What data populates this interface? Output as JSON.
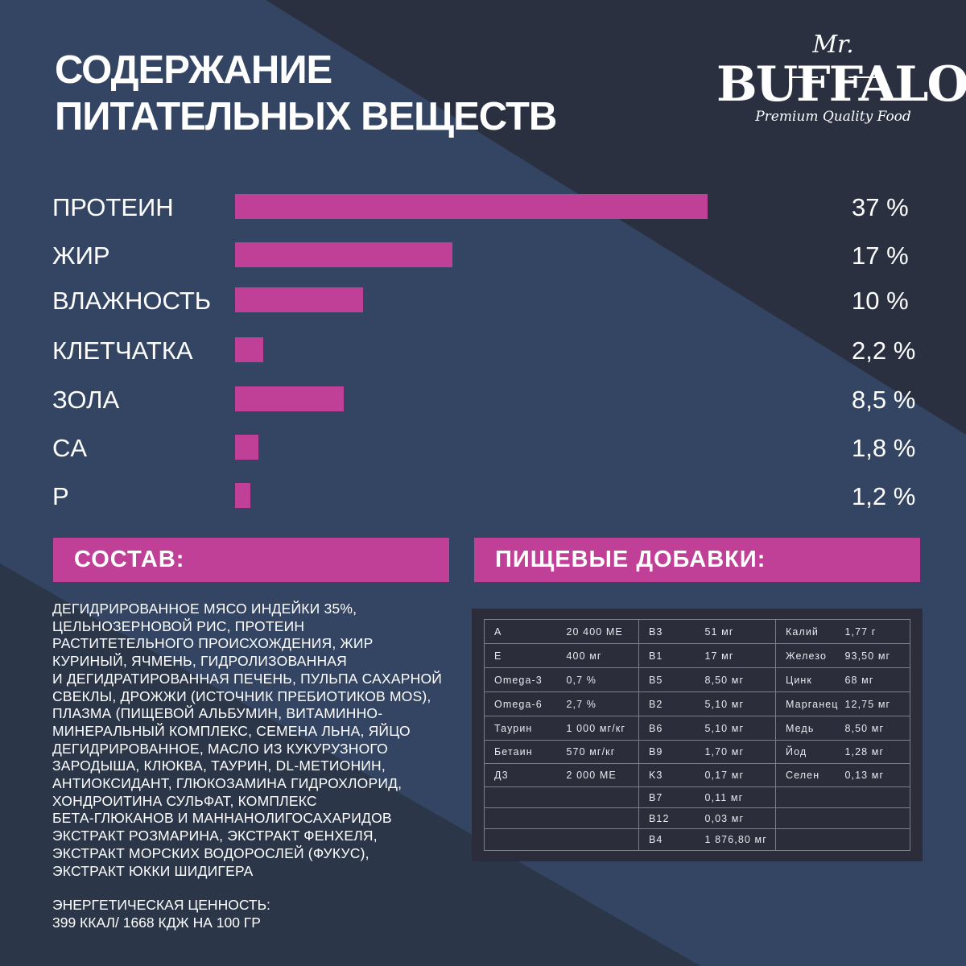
{
  "title": {
    "line1": "СОДЕРЖАНИЕ",
    "line2": "ПИТАТЕЛЬНЫХ ВЕЩЕСТВ"
  },
  "logo": {
    "top": "Mr.",
    "main": "BUFFALO",
    "tagline": "Premium Quality Food"
  },
  "colors": {
    "background": "#2a3347",
    "accent": "#bf4096",
    "text": "#ffffff",
    "table_panel": "#2b2e3a"
  },
  "chart_data": {
    "type": "bar",
    "orientation": "horizontal",
    "categories": [
      "ПРОТЕИН",
      "ЖИР",
      "ВЛАЖНОСТЬ",
      "КЛЕТЧАТКА",
      "ЗОЛА",
      "CA",
      "P"
    ],
    "values": [
      37,
      17,
      10,
      2.2,
      8.5,
      1.8,
      1.2
    ],
    "value_labels": [
      "37 %",
      "17 %",
      "10 %",
      "2,2 %",
      "8,5 %",
      "1,8 %",
      "1,2 %"
    ],
    "grid": false
  },
  "composition": {
    "heading": "СОСТАВ:",
    "lines": [
      "ДЕГИДРИРОВАННОЕ МЯСО ИНДЕЙКИ 35%,",
      "ЦЕЛЬНОЗЕРНОВОЙ РИС, ПРОТЕИН",
      "РАСТИТЕТЕЛЬНОГО ПРОИСХОЖДЕНИЯ, ЖИР",
      "КУРИНЫЙ, ЯЧМЕНЬ, ГИДРОЛИЗОВАННАЯ",
      "И ДЕГИДРАТИРОВАННАЯ ПЕЧЕНЬ, ПУЛЬПА САХАРНОЙ",
      "СВЕКЛЫ, ДРОЖЖИ (ИСТОЧНИК ПРЕБИОТИКОВ MOS),",
      "ПЛАЗМА (ПИЩЕВОЙ АЛЬБУМИН, ВИТАМИННО-",
      "МИНЕРАЛЬНЫЙ КОМПЛЕКС, СЕМЕНА ЛЬНА, ЯЙЦО",
      "ДЕГИДРИРОВАННОЕ, МАСЛО ИЗ КУКУРУЗНОГО",
      "ЗАРОДЫША, КЛЮКВА, ТАУРИН, DL-МЕТИОНИН,",
      "АНТИОКСИДАНТ, ГЛЮКОЗАМИНА ГИДРОХЛОРИД,",
      "ХОНДРОИТИНА СУЛЬФАТ, КОМПЛЕКС",
      "БЕТА-ГЛЮКАНОВ И МАННАНОЛИГОСАХАРИДОВ",
      "ЭКСТРАКТ РОЗМАРИНА, ЭКСТРАКТ ФЕНХЕЛЯ,",
      "ЭКСТРАКТ МОРСКИХ ВОДОРОСЛЕЙ (ФУКУС),",
      "ЭКСТРАКТ ЮККИ ШИДИГЕРА"
    ],
    "energy_label": "ЭНЕРГЕТИЧЕСКАЯ ЦЕННОСТЬ:",
    "energy_value": "399 ККАЛ/ 1668 КДЖ НА 100 ГР"
  },
  "additives": {
    "heading": "ПИЩЕВЫЕ ДОБАВКИ:",
    "rows": [
      [
        "A",
        "20 400 МЕ",
        "B3",
        "51 мг",
        "Калий",
        "1,77 г"
      ],
      [
        "E",
        "400 мг",
        "B1",
        "17 мг",
        "Железо",
        "93,50 мг"
      ],
      [
        "Omega-3",
        "0,7 %",
        "B5",
        "8,50 мг",
        "Цинк",
        "68 мг"
      ],
      [
        "Omega-6",
        "2,7 %",
        "B2",
        "5,10 мг",
        "Марганец",
        "12,75 мг"
      ],
      [
        "Таурин",
        "1 000 мг/кг",
        "B6",
        "5,10 мг",
        "Медь",
        "8,50 мг"
      ],
      [
        "Бетаин",
        "570 мг/кг",
        "B9",
        "1,70 мг",
        "Йод",
        "1,28 мг"
      ],
      [
        "Д3",
        "2 000 МЕ",
        "K3",
        "0,17 мг",
        "Селен",
        "0,13 мг"
      ],
      [
        "",
        "",
        "B7",
        "0,11 мг",
        "",
        ""
      ],
      [
        "",
        "",
        "B12",
        "0,03 мг",
        "",
        ""
      ],
      [
        "",
        "",
        "B4",
        "1 876,80 мг",
        "",
        ""
      ]
    ]
  }
}
